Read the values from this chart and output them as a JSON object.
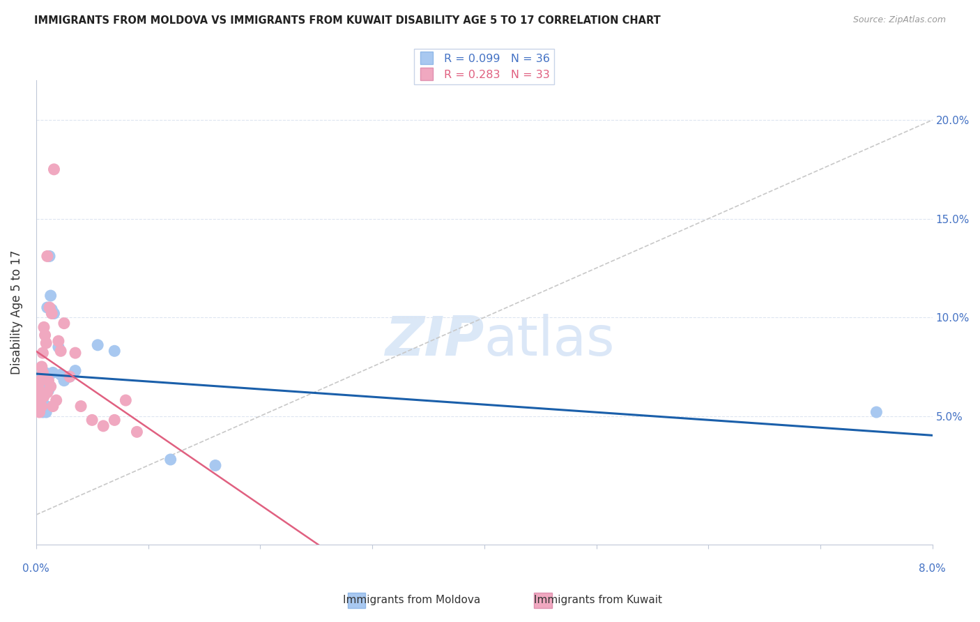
{
  "title": "IMMIGRANTS FROM MOLDOVA VS IMMIGRANTS FROM KUWAIT DISABILITY AGE 5 TO 17 CORRELATION CHART",
  "source": "Source: ZipAtlas.com",
  "ylabel": "Disability Age 5 to 17",
  "legend_moldova": "Immigrants from Moldova",
  "legend_kuwait": "Immigrants from Kuwait",
  "R_moldova": 0.099,
  "N_moldova": 36,
  "R_kuwait": 0.283,
  "N_kuwait": 33,
  "moldova_color": "#a8c8f0",
  "kuwait_color": "#f0a8c0",
  "moldova_line_color": "#1a5faa",
  "kuwait_line_color": "#e06080",
  "ref_line_color": "#c8c8c8",
  "grid_color": "#dde5f0",
  "watermark_zip": "ZIP",
  "watermark_atlas": "atlas",
  "xlim": [
    0.0,
    0.08
  ],
  "ylim": [
    -0.015,
    0.22
  ],
  "yticks": [
    0.0,
    0.05,
    0.1,
    0.15,
    0.2
  ],
  "ytick_labels": [
    "",
    "5.0%",
    "10.0%",
    "15.0%",
    "20.0%"
  ],
  "moldova_x": [
    0.0002,
    0.0002,
    0.0003,
    0.0003,
    0.0004,
    0.0004,
    0.0005,
    0.0005,
    0.0005,
    0.0006,
    0.0006,
    0.0006,
    0.0007,
    0.0007,
    0.0008,
    0.0008,
    0.0009,
    0.0009,
    0.001,
    0.001,
    0.0011,
    0.0012,
    0.0013,
    0.0014,
    0.0015,
    0.0016,
    0.002,
    0.0022,
    0.0025,
    0.003,
    0.0035,
    0.0055,
    0.007,
    0.012,
    0.016,
    0.075
  ],
  "moldova_y": [
    0.065,
    0.063,
    0.068,
    0.062,
    0.066,
    0.058,
    0.07,
    0.065,
    0.06,
    0.057,
    0.054,
    0.052,
    0.068,
    0.063,
    0.072,
    0.067,
    0.055,
    0.052,
    0.105,
    0.068,
    0.063,
    0.131,
    0.111,
    0.104,
    0.072,
    0.102,
    0.085,
    0.071,
    0.068,
    0.07,
    0.073,
    0.086,
    0.083,
    0.028,
    0.025,
    0.052
  ],
  "kuwait_x": [
    0.0002,
    0.0003,
    0.0003,
    0.0004,
    0.0004,
    0.0005,
    0.0005,
    0.0006,
    0.0006,
    0.0007,
    0.0007,
    0.0008,
    0.0009,
    0.001,
    0.001,
    0.0011,
    0.0012,
    0.0013,
    0.0014,
    0.0015,
    0.0016,
    0.0018,
    0.002,
    0.0022,
    0.0025,
    0.003,
    0.0035,
    0.004,
    0.005,
    0.006,
    0.007,
    0.008,
    0.009
  ],
  "kuwait_y": [
    0.065,
    0.058,
    0.052,
    0.068,
    0.062,
    0.075,
    0.055,
    0.082,
    0.072,
    0.095,
    0.06,
    0.091,
    0.087,
    0.131,
    0.062,
    0.068,
    0.105,
    0.065,
    0.102,
    0.055,
    0.175,
    0.058,
    0.088,
    0.083,
    0.097,
    0.07,
    0.082,
    0.055,
    0.048,
    0.045,
    0.048,
    0.058,
    0.042
  ]
}
